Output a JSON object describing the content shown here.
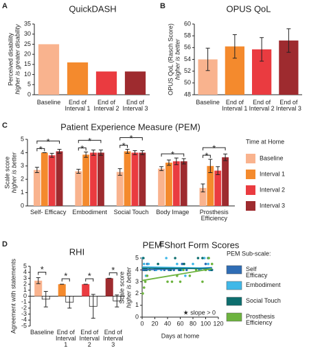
{
  "chart_data": [
    {
      "panel": "A",
      "type": "bar",
      "title": "QuickDASH",
      "ylabel": [
        "Perceived disability",
        "higher is greater disability"
      ],
      "categories": [
        "Baseline",
        "End of Interval 1",
        "End of Interval 2",
        "End of Interval 3"
      ],
      "values": [
        25,
        16,
        11.5,
        11.5
      ],
      "colors": [
        "#f9b38e",
        "#f48a2d",
        "#ea3b40",
        "#9e2b2f"
      ],
      "ylim": [
        0,
        35
      ],
      "yticks": [
        0,
        5,
        10,
        15,
        20,
        25,
        30,
        35
      ]
    },
    {
      "panel": "B",
      "type": "bar",
      "title": "OPUS QoL",
      "ylabel": [
        "OPUS QoL (Rasch Score)",
        "higher is better"
      ],
      "categories": [
        "Baseline",
        "End of Interval 1",
        "End of Interval 2",
        "End of Interval 3"
      ],
      "values": [
        54,
        56.2,
        55.7,
        57.2
      ],
      "errors": [
        1.9,
        2.0,
        2.0,
        2.0
      ],
      "colors": [
        "#f9b38e",
        "#f48a2d",
        "#ea3b40",
        "#9e2b2f"
      ],
      "ylim": [
        48,
        60
      ],
      "yticks": [
        48,
        50,
        52,
        54,
        56,
        58,
        60
      ]
    },
    {
      "panel": "C",
      "type": "grouped_bar",
      "title": "Patient Experience Measure (PEM)",
      "ylabel": [
        "Scale score",
        "higher is better"
      ],
      "categories": [
        "Self- Efficacy",
        "Embodiment",
        "Social Touch",
        "Body Image",
        "Prosthesis Efficiency"
      ],
      "legend_title": "Time at Home",
      "series": [
        {
          "name": "Baseline",
          "color": "#f9b38e",
          "values": [
            2.7,
            2.6,
            2.55,
            2.8,
            1.35
          ],
          "errors": [
            0.2,
            0.15,
            0.25,
            0.15,
            0.3
          ]
        },
        {
          "name": "Interval 1",
          "color": "#f48a2d",
          "values": [
            4.0,
            3.85,
            4.1,
            3.25,
            3.0
          ],
          "errors": [
            0,
            0.2,
            0.15,
            0.2,
            0.5
          ]
        },
        {
          "name": "Interval 2",
          "color": "#ea3b40",
          "values": [
            3.8,
            4.0,
            4.0,
            3.35,
            2.65
          ],
          "errors": [
            0.15,
            0.2,
            0.15,
            0.25,
            0.3
          ]
        },
        {
          "name": "Interval 3",
          "color": "#9e2b2f",
          "values": [
            4.1,
            4.0,
            4.0,
            3.35,
            3.65
          ],
          "errors": [
            0.15,
            0.2,
            0.15,
            0.2,
            0.25
          ]
        }
      ],
      "significance": [
        {
          "category": 0,
          "series": [
            0,
            1
          ],
          "label": "*"
        },
        {
          "category": 0,
          "series": [
            0,
            3
          ],
          "label": "*"
        },
        {
          "category": 1,
          "series": [
            0,
            1
          ],
          "label": "*"
        },
        {
          "category": 1,
          "series": [
            0,
            3
          ],
          "label": "*"
        },
        {
          "category": 2,
          "series": [
            0,
            1
          ],
          "label": "*"
        },
        {
          "category": 2,
          "series": [
            0,
            3
          ],
          "label": "*"
        },
        {
          "category": 3,
          "series": [
            0,
            3
          ],
          "label": "*"
        },
        {
          "category": 4,
          "series": [
            0,
            1
          ],
          "label": "*"
        },
        {
          "category": 4,
          "series": [
            0,
            3
          ],
          "label": "*"
        }
      ],
      "ylim": [
        0,
        5
      ],
      "yticks": [
        0,
        1,
        2,
        3,
        4,
        5
      ]
    },
    {
      "panel": "D",
      "type": "paired_bar",
      "title": "RHI",
      "ylabel": [
        "Agreement with statements"
      ],
      "categories": [
        "Baseline",
        "End of Interval 1",
        "End of Interval 2",
        "End of Interval 3"
      ],
      "series": [
        {
          "colors": [
            "#f9b38e",
            "#f48a2d",
            "#ea3b40",
            "#9e2b2f"
          ],
          "values": [
            2.6,
            2.0,
            2.0,
            3.0
          ],
          "errors": [
            0.5,
            0,
            0,
            0
          ]
        },
        {
          "color": "#ffffff",
          "values": [
            -0.5,
            -1.0,
            -1.7,
            -0.8
          ],
          "errors": [
            1.3,
            1.0,
            2.0,
            1.0
          ]
        }
      ],
      "significance": [
        "*",
        "*",
        "*",
        "*"
      ],
      "ylim": [
        -5,
        5
      ],
      "yticks": [
        -5,
        -4,
        -3,
        -2,
        -1,
        0,
        1,
        2,
        3,
        4,
        5
      ]
    },
    {
      "panel": "E",
      "type": "scatter",
      "title": "PEM Short Form Scores",
      "ylabel": [
        "Scale score",
        "higher is better"
      ],
      "xlabel": "Days at home",
      "legend_title": "PEM Sub-scale:",
      "annotation": "★ slope > 0",
      "annotation_color": "#6db33f",
      "series": [
        {
          "name": "Self Efficacy",
          "color": "#2f6db5",
          "x": [
            2,
            5,
            8,
            20,
            35,
            42,
            50,
            58,
            63,
            70,
            90,
            100,
            106,
            110
          ],
          "values": [
            4,
            4,
            4.5,
            4,
            4,
            4,
            4,
            4,
            4.5,
            4,
            4,
            4.5,
            4,
            4
          ],
          "trend": {
            "x": [
              0,
              110
            ],
            "values": [
              4.0,
              4.2
            ]
          }
        },
        {
          "name": "Embodiment",
          "color": "#40b8e8",
          "x": [
            1,
            3,
            6,
            10,
            22,
            30,
            38,
            45,
            55,
            62,
            68,
            80,
            92,
            98,
            104,
            108
          ],
          "values": [
            5,
            4.5,
            3.5,
            4.5,
            4,
            4,
            5,
            4,
            4.5,
            4,
            3.5,
            4.5,
            4,
            5,
            4.5,
            4
          ],
          "trend": {
            "x": [
              0,
              110
            ],
            "values": [
              4.25,
              4.15
            ]
          }
        },
        {
          "name": "Social Touch",
          "color": "#0d6e6e",
          "x": [
            2,
            4,
            7,
            25,
            45,
            52,
            60,
            66,
            88,
            95,
            100,
            104,
            109
          ],
          "values": [
            5,
            4,
            4,
            4.5,
            4,
            5,
            4,
            4.5,
            5,
            5,
            4,
            5,
            4
          ],
          "trend": {
            "x": [
              0,
              110
            ],
            "values": [
              4.15,
              4.1
            ]
          }
        },
        {
          "name": "Prosthesis Efficiency",
          "color": "#6db33f",
          "x": [
            1,
            3,
            5,
            8,
            12,
            40,
            47,
            55,
            60,
            65,
            75,
            85,
            95,
            100,
            105,
            110
          ],
          "values": [
            2,
            2.5,
            3,
            3.5,
            4,
            3,
            3,
            3.5,
            3,
            4,
            3.5,
            4,
            3,
            4,
            5,
            4.5
          ],
          "trend": {
            "x": [
              0,
              110
            ],
            "values": [
              3.1,
              4.1
            ]
          }
        }
      ],
      "xlim": [
        0,
        120
      ],
      "xticks": [
        0,
        20,
        40,
        60,
        80,
        100,
        120
      ],
      "ylim": [
        0,
        5
      ],
      "yticks": [
        0,
        1,
        2,
        3,
        4,
        5
      ]
    }
  ]
}
